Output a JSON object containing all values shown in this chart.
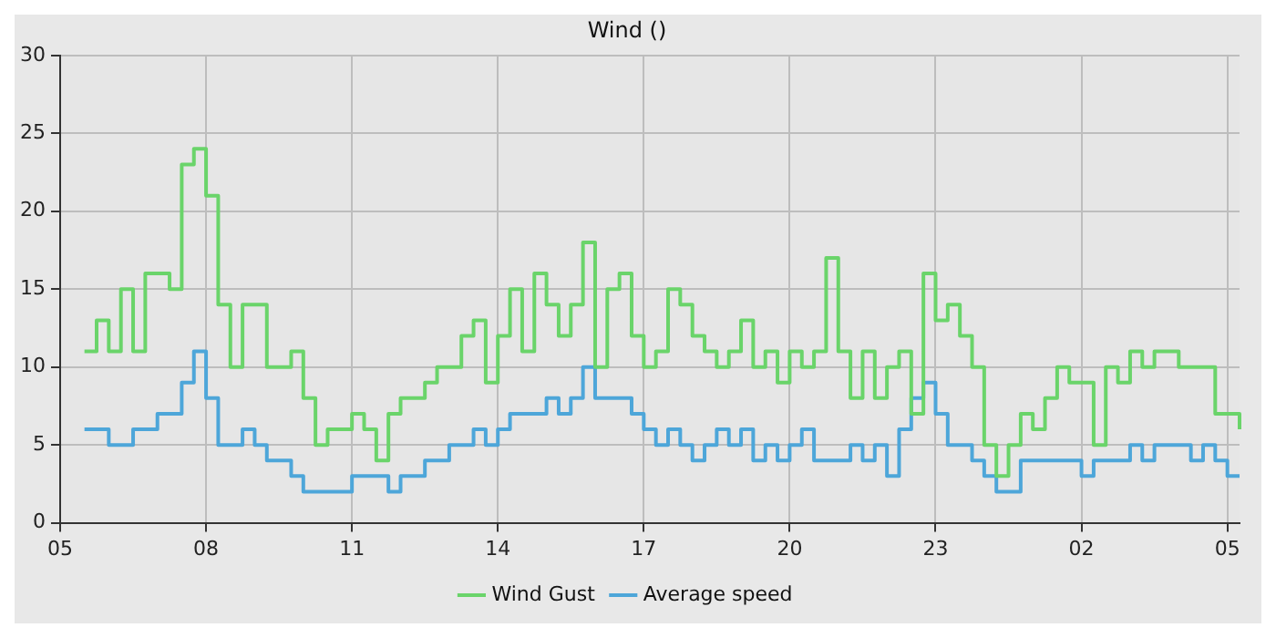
{
  "chart_data": {
    "type": "step",
    "title": "Wind ()",
    "categories": [
      "05",
      null,
      null,
      null,
      null,
      null,
      null,
      null,
      null,
      null,
      null,
      null,
      "08",
      null,
      null,
      null,
      null,
      null,
      null,
      null,
      null,
      null,
      null,
      null,
      "11",
      null,
      null,
      null,
      null,
      null,
      null,
      null,
      null,
      null,
      null,
      null,
      "14",
      null,
      null,
      null,
      null,
      null,
      null,
      null,
      null,
      null,
      null,
      null,
      "17",
      null,
      null,
      null,
      null,
      null,
      null,
      null,
      null,
      null,
      null,
      null,
      "20",
      null,
      null,
      null,
      null,
      null,
      null,
      null,
      null,
      null,
      null,
      null,
      "23",
      null,
      null,
      null,
      null,
      null,
      null,
      null,
      null,
      null,
      null,
      null,
      "02",
      null,
      null,
      null,
      null,
      null,
      null,
      null,
      null,
      null,
      null,
      null,
      "05",
      null
    ],
    "ylim": [
      0,
      30
    ],
    "yticks": [
      0,
      5,
      10,
      15,
      20,
      25,
      30
    ],
    "grid": true,
    "legend": "bottom",
    "line_style": "solid",
    "marker": "none",
    "series": [
      {
        "name": "Wind Gust",
        "color": "#6ad46a",
        "values": [
          null,
          null,
          11,
          13,
          11,
          15,
          11,
          16,
          16,
          15,
          23,
          24,
          21,
          14,
          10,
          14,
          14,
          10,
          10,
          11,
          8,
          5,
          6,
          6,
          7,
          6,
          4,
          7,
          8,
          8,
          9,
          10,
          10,
          12,
          13,
          9,
          12,
          15,
          11,
          16,
          14,
          12,
          14,
          18,
          10,
          15,
          16,
          12,
          10,
          11,
          15,
          14,
          12,
          11,
          10,
          11,
          13,
          10,
          11,
          9,
          11,
          10,
          11,
          17,
          11,
          8,
          11,
          8,
          10,
          11,
          7,
          16,
          13,
          14,
          12,
          10,
          5,
          3,
          5,
          7,
          6,
          8,
          10,
          9,
          9,
          5,
          10,
          9,
          11,
          10,
          11,
          11,
          10,
          10,
          10,
          7,
          7,
          6
        ]
      },
      {
        "name": "Average speed",
        "color": "#4da6d9",
        "values": [
          null,
          null,
          6,
          6,
          5,
          5,
          6,
          6,
          7,
          7,
          9,
          11,
          8,
          5,
          5,
          6,
          5,
          4,
          4,
          3,
          2,
          2,
          2,
          2,
          3,
          3,
          3,
          2,
          3,
          3,
          4,
          4,
          5,
          5,
          6,
          5,
          6,
          7,
          7,
          7,
          8,
          7,
          8,
          10,
          8,
          8,
          8,
          7,
          6,
          5,
          6,
          5,
          4,
          5,
          6,
          5,
          6,
          4,
          5,
          4,
          5,
          6,
          4,
          4,
          4,
          5,
          4,
          5,
          3,
          6,
          8,
          9,
          7,
          5,
          5,
          4,
          3,
          2,
          2,
          4,
          4,
          4,
          4,
          4,
          3,
          4,
          4,
          4,
          5,
          4,
          5,
          5,
          5,
          4,
          5,
          4,
          3,
          3
        ]
      }
    ]
  }
}
